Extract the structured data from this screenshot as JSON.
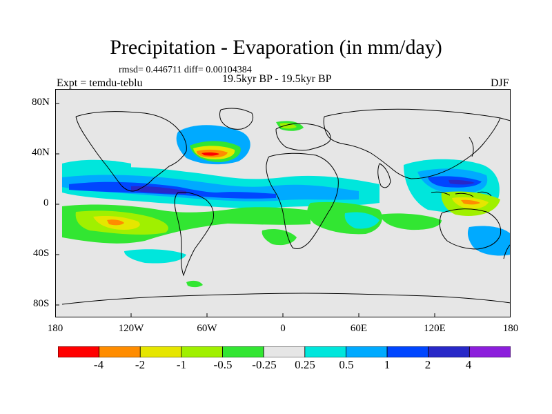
{
  "title": "Precipitation - Evaporation (in mm/day)",
  "stats": "rmsd= 0.446711  diff= 0.00104384",
  "experiment": "Expt = temdu-teblu",
  "period": "19.5kyr BP - 19.5kyr BP",
  "season": "DJF",
  "map": {
    "lat_ticks": [
      "80N",
      "40N",
      "0",
      "40S",
      "80S"
    ],
    "lon_ticks": [
      "180",
      "120W",
      "60W",
      "0",
      "60E",
      "120E",
      "180"
    ],
    "background_color": "#e6e6e6"
  },
  "colorbar": {
    "colors": [
      "#ff0000",
      "#ff8c00",
      "#e6e600",
      "#a0f000",
      "#32e632",
      "#e6e6e6",
      "#00e6dc",
      "#00aaff",
      "#0046ff",
      "#2828c8",
      "#8c1edc"
    ],
    "labels": [
      "-4",
      "-2",
      "-1",
      "-0.5",
      "-0.25",
      "0.25",
      "0.5",
      "1",
      "2",
      "4"
    ]
  }
}
